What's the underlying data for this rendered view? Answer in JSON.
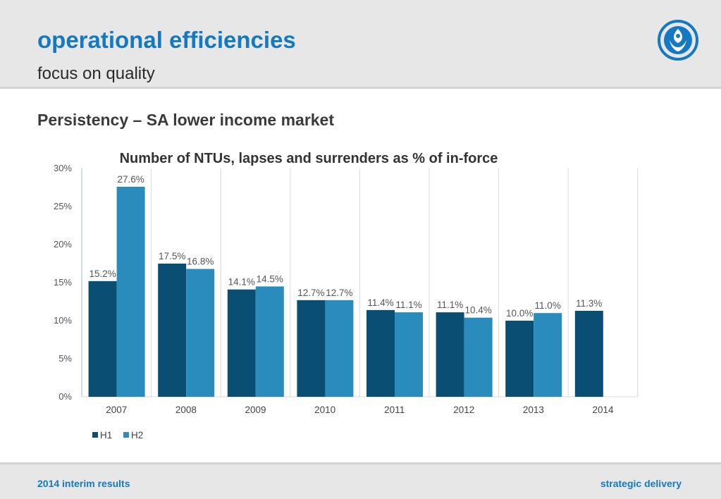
{
  "header": {
    "title": "operational efficiencies",
    "subtitle": "focus on quality",
    "logo_icon": "sanlam-shield-logo-icon"
  },
  "section_heading": "Persistency – SA lower income market",
  "footer": {
    "left": "2014 interim results",
    "right": "strategic delivery"
  },
  "colors": {
    "brand": "#1479c0",
    "h1": "#0b4e74",
    "h2": "#2a8bbd"
  },
  "chart_data": {
    "type": "bar",
    "title": "Number of NTUs, lapses and surrenders as % of in-force",
    "xlabel": "",
    "ylabel": "",
    "categories": [
      "2007",
      "2008",
      "2009",
      "2010",
      "2011",
      "2012",
      "2013",
      "2014"
    ],
    "series": [
      {
        "name": "H1",
        "values": [
          15.2,
          17.5,
          14.1,
          12.7,
          11.4,
          11.1,
          10.0,
          11.3
        ],
        "labels": [
          "15.2%",
          "17.5%",
          "14.1%",
          "12.7%",
          "11.4%",
          "11.1%",
          "10.0%",
          "11.3%"
        ]
      },
      {
        "name": "H2",
        "values": [
          27.6,
          16.8,
          14.5,
          12.7,
          11.1,
          10.4,
          11.0,
          null
        ],
        "labels": [
          "27.6%",
          "16.8%",
          "14.5%",
          "12.7%",
          "11.1%",
          "10.4%",
          "11.0%",
          null
        ]
      }
    ],
    "ylim": [
      0,
      30
    ],
    "yticks": [
      0,
      5,
      10,
      15,
      20,
      25,
      30
    ],
    "ytick_labels": [
      "0%",
      "5%",
      "10%",
      "15%",
      "20%",
      "25%",
      "30%"
    ],
    "grid": "vertical separators between categories",
    "legend_position": "bottom-left"
  }
}
